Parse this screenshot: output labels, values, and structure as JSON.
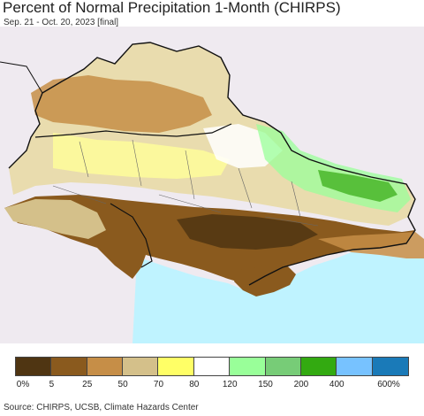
{
  "title": "Percent of Normal Precipitation 1-Month (CHIRPS)",
  "subtitle": "Sep. 21 - Oct. 20, 2023 [final]",
  "source": "Source: CHIRPS, UCSB, Climate Hazards Center",
  "legend": {
    "colors": [
      "#4f3512",
      "#8a5a1e",
      "#c68e47",
      "#d4c08a",
      "#ffff66",
      "#ffffff",
      "#99ff99",
      "#77cc77",
      "#33aa11",
      "#77c2ff",
      "#1a7ab8"
    ],
    "labels": [
      "0%",
      "5",
      "25",
      "50",
      "70",
      "80",
      "120",
      "150",
      "200",
      "400",
      "600%"
    ]
  },
  "map_colors": {
    "background": "#efeaf0",
    "sea": "#bff3ff",
    "border": "#111111",
    "oblast_border": "#666666"
  }
}
